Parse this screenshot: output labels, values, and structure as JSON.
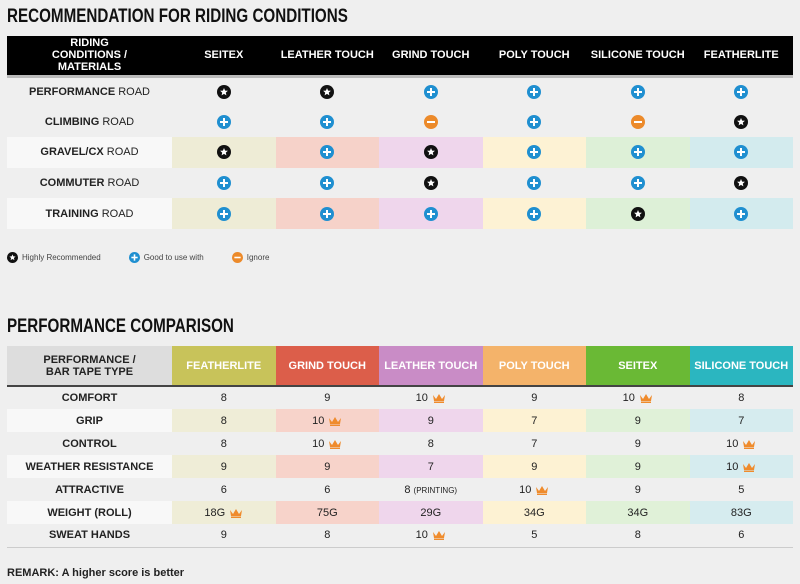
{
  "recommendation": {
    "title": "RECOMMENDATION FOR RIDING CONDITIONS",
    "corner_header": "RIDING CONDITIONS / MATERIALS",
    "columns": [
      "SEITEX",
      "LEATHER TOUCH",
      "GRIND TOUCH",
      "POLY TOUCH",
      "SILICONE TOUCH",
      "FEATHERLITE"
    ],
    "column_tints": [
      "#eeecd6",
      "#f6d2c9",
      "#efd6ec",
      "#fdf2d4",
      "#ddf0d7",
      "#d3ebee"
    ],
    "rows": [
      {
        "bold": "PERFORMANCE",
        "rest": " ROAD",
        "ratings": [
          "star",
          "star",
          "plus",
          "plus",
          "plus",
          "plus"
        ],
        "tinted": false
      },
      {
        "bold": "CLIMBING",
        "rest": " ROAD",
        "ratings": [
          "plus",
          "plus",
          "minus",
          "plus",
          "minus",
          "star"
        ],
        "tinted": false
      },
      {
        "bold": "GRAVEL/CX",
        "rest": " ROAD",
        "ratings": [
          "star",
          "plus",
          "star",
          "plus",
          "plus",
          "plus"
        ],
        "tinted": true
      },
      {
        "bold": "COMMUTER",
        "rest": " ROAD",
        "ratings": [
          "plus",
          "plus",
          "star",
          "plus",
          "plus",
          "star"
        ],
        "tinted": false
      },
      {
        "bold": "TRAINING",
        "rest": " ROAD",
        "ratings": [
          "plus",
          "plus",
          "plus",
          "plus",
          "star",
          "plus"
        ],
        "tinted": true
      }
    ],
    "legend": [
      {
        "icon": "star",
        "label": "Highly Recommended"
      },
      {
        "icon": "plus",
        "label": "Good to use with"
      },
      {
        "icon": "minus",
        "label": "Ignore"
      }
    ]
  },
  "icon_colors": {
    "star": "#111111",
    "plus": "#1f8fd0",
    "minus": "#ec8a2a",
    "crown": "#ef8b2c"
  },
  "performance": {
    "title": "PERFORMANCE COMPARISON",
    "corner_header": "PERFORMANCE / BAR TAPE TYPE",
    "columns": [
      {
        "label": "FEATHERLITE",
        "color": "#c8c35a",
        "tint": "#efedd7"
      },
      {
        "label": "GRIND TOUCH",
        "color": "#dc5e4a",
        "tint": "#f7d3ca"
      },
      {
        "label": "LEATHER TOUCH",
        "color": "#c98cc6",
        "tint": "#efd6ec"
      },
      {
        "label": "POLY TOUCH",
        "color": "#f4b36a",
        "tint": "#fdf2d3"
      },
      {
        "label": "SEITEX",
        "color": "#6ab935",
        "tint": "#e0f1d8"
      },
      {
        "label": "SILICONE TOUCH",
        "color": "#2bb6c0",
        "tint": "#d6ecef"
      }
    ],
    "rows": [
      {
        "label": "COMFORT",
        "tinted": false,
        "cells": [
          {
            "v": "8"
          },
          {
            "v": "9"
          },
          {
            "v": "10",
            "crown": true
          },
          {
            "v": "9"
          },
          {
            "v": "10",
            "crown": true
          },
          {
            "v": "8"
          }
        ]
      },
      {
        "label": "GRIP",
        "tinted": true,
        "cells": [
          {
            "v": "8"
          },
          {
            "v": "10",
            "crown": true
          },
          {
            "v": "9"
          },
          {
            "v": "7"
          },
          {
            "v": "9"
          },
          {
            "v": "7"
          }
        ]
      },
      {
        "label": "CONTROL",
        "tinted": false,
        "cells": [
          {
            "v": "8"
          },
          {
            "v": "10",
            "crown": true
          },
          {
            "v": "8"
          },
          {
            "v": "7"
          },
          {
            "v": "9"
          },
          {
            "v": "10",
            "crown": true
          }
        ]
      },
      {
        "label": "WEATHER RESISTANCE",
        "tinted": true,
        "cells": [
          {
            "v": "9"
          },
          {
            "v": "9"
          },
          {
            "v": "7"
          },
          {
            "v": "9"
          },
          {
            "v": "9"
          },
          {
            "v": "10",
            "crown": true
          }
        ]
      },
      {
        "label": "ATTRACTIVE",
        "tinted": false,
        "cells": [
          {
            "v": "6"
          },
          {
            "v": "6"
          },
          {
            "v": "8",
            "note": "(PRINTING)"
          },
          {
            "v": "10",
            "crown": true
          },
          {
            "v": "9"
          },
          {
            "v": "5"
          }
        ]
      },
      {
        "label": "WEIGHT (ROLL)",
        "tinted": true,
        "cells": [
          {
            "v": "18G",
            "crown": true
          },
          {
            "v": "75G"
          },
          {
            "v": "29G"
          },
          {
            "v": "34G"
          },
          {
            "v": "34G"
          },
          {
            "v": "83G"
          }
        ]
      },
      {
        "label": "SWEAT HANDS",
        "tinted": false,
        "cells": [
          {
            "v": "9"
          },
          {
            "v": "8"
          },
          {
            "v": "10",
            "crown": true
          },
          {
            "v": "5"
          },
          {
            "v": "8"
          },
          {
            "v": "6"
          }
        ]
      }
    ],
    "remark": "REMARK: A higher score is better"
  }
}
